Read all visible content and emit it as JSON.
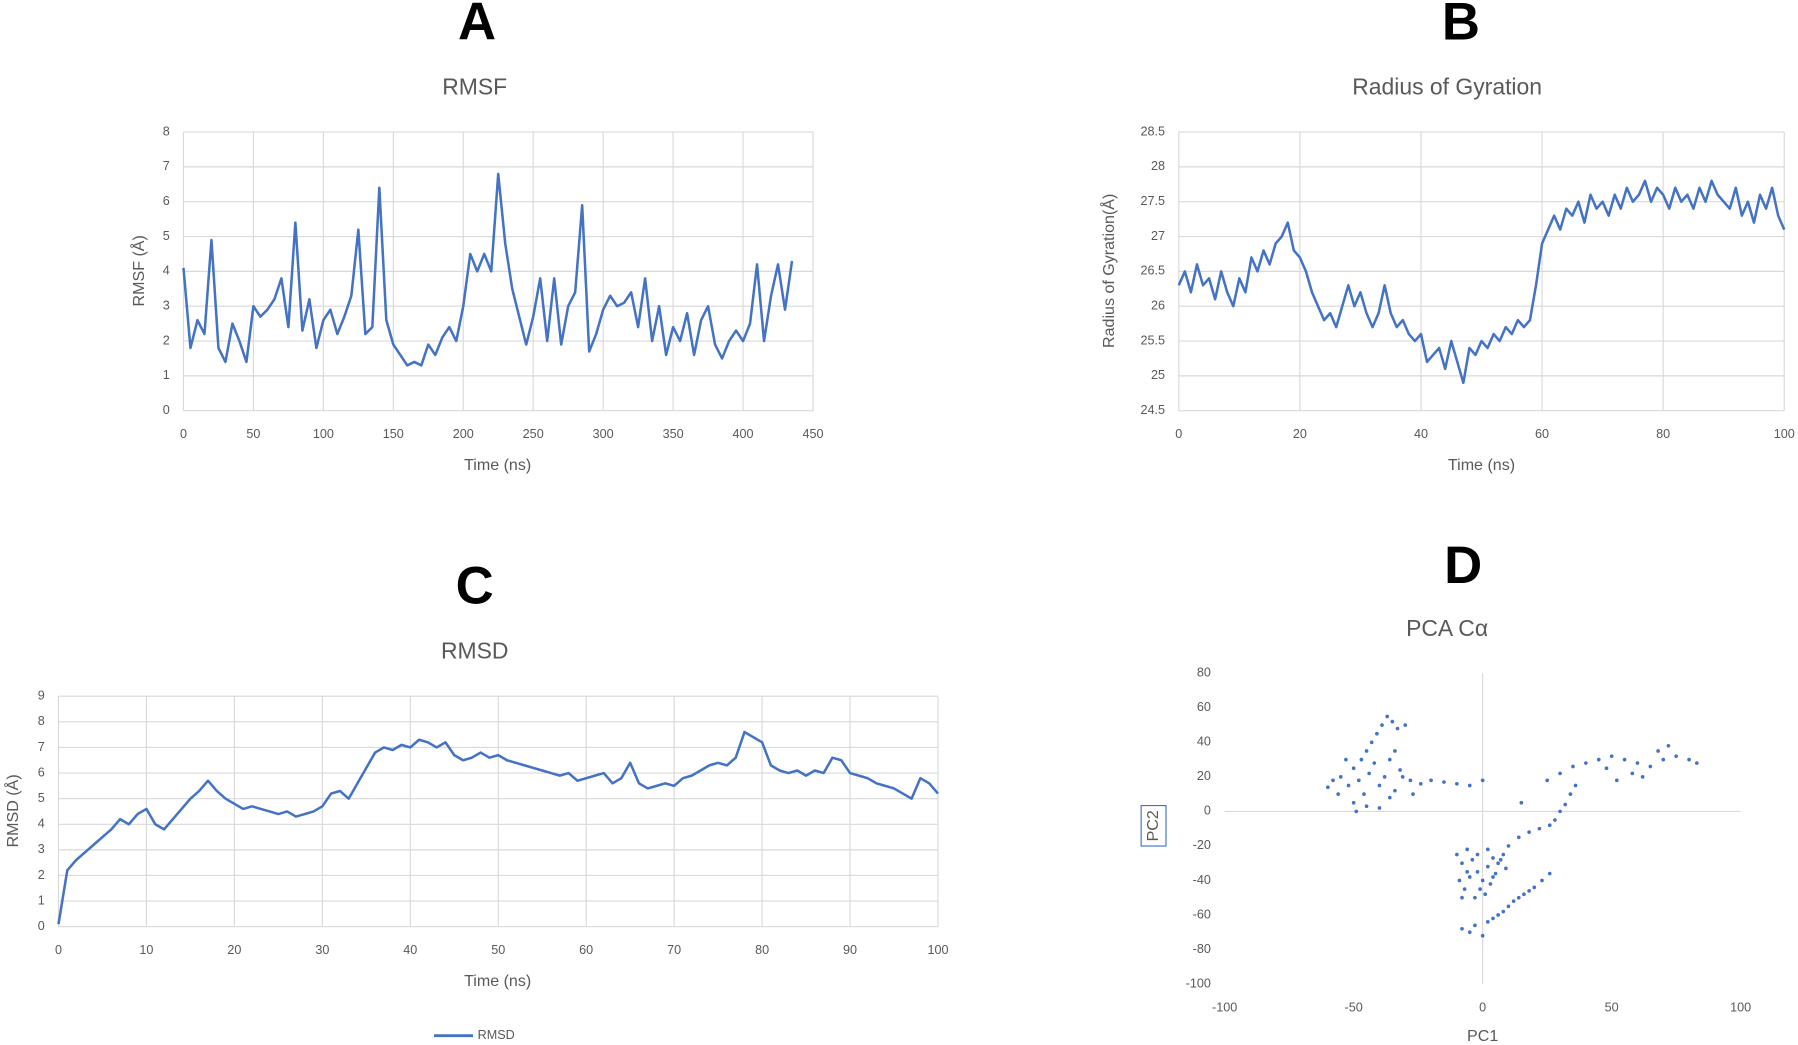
{
  "chart_data": [
    {
      "type": "line",
      "panel": "A",
      "title": "RMSF",
      "xlabel": "Time (ns)",
      "ylabel": "RMSF (Å)",
      "xlim": [
        0,
        450
      ],
      "xticks": [
        0,
        50,
        100,
        150,
        200,
        250,
        300,
        350,
        400,
        450
      ],
      "ylim": [
        0,
        8
      ],
      "yticks": [
        0,
        1,
        2,
        3,
        4,
        5,
        6,
        7,
        8
      ],
      "grid": true,
      "x": [
        0,
        5,
        10,
        15,
        20,
        25,
        30,
        35,
        40,
        45,
        50,
        55,
        60,
        65,
        70,
        75,
        80,
        85,
        90,
        95,
        100,
        105,
        110,
        115,
        120,
        125,
        130,
        135,
        140,
        145,
        150,
        155,
        160,
        165,
        170,
        175,
        180,
        185,
        190,
        195,
        200,
        205,
        210,
        215,
        220,
        225,
        230,
        235,
        240,
        245,
        250,
        255,
        260,
        265,
        270,
        275,
        280,
        285,
        290,
        295,
        300,
        305,
        310,
        315,
        320,
        325,
        330,
        335,
        340,
        345,
        350,
        355,
        360,
        365,
        370,
        375,
        380,
        385,
        390,
        395,
        400,
        405,
        410,
        415,
        420,
        425,
        430,
        435
      ],
      "series": [
        {
          "color": "#4472c4",
          "values": [
            4.1,
            1.8,
            2.6,
            2.2,
            4.9,
            1.8,
            1.4,
            2.5,
            2.0,
            1.4,
            3.0,
            2.7,
            2.9,
            3.2,
            3.8,
            2.4,
            5.4,
            2.3,
            3.2,
            1.8,
            2.6,
            2.9,
            2.2,
            2.7,
            3.3,
            5.2,
            2.2,
            2.4,
            6.4,
            2.6,
            1.9,
            1.6,
            1.3,
            1.4,
            1.3,
            1.9,
            1.6,
            2.1,
            2.4,
            2.0,
            3.0,
            4.5,
            4.0,
            4.5,
            4.0,
            6.8,
            4.8,
            3.5,
            2.7,
            1.9,
            2.7,
            3.8,
            2.0,
            3.8,
            1.9,
            3.0,
            3.4,
            5.9,
            1.7,
            2.2,
            2.9,
            3.3,
            3.0,
            3.1,
            3.4,
            2.4,
            3.8,
            2.0,
            3.0,
            1.6,
            2.4,
            2.0,
            2.8,
            1.6,
            2.6,
            3.0,
            1.9,
            1.5,
            2.0,
            2.3,
            2.0,
            2.5,
            4.2,
            2.0,
            3.3,
            4.2,
            2.9,
            4.3
          ]
        }
      ]
    },
    {
      "type": "line",
      "panel": "B",
      "title": "Radius of Gyration",
      "xlabel": "Time (ns)",
      "ylabel": "Radius of Gyration(Å)",
      "xlim": [
        0,
        100
      ],
      "xticks": [
        0,
        20,
        40,
        60,
        80,
        100
      ],
      "ylim": [
        24.5,
        28.5
      ],
      "yticks": [
        24.5,
        25,
        25.5,
        26,
        26.5,
        27,
        27.5,
        28,
        28.5
      ],
      "grid": true,
      "x": [
        0,
        1,
        2,
        3,
        4,
        5,
        6,
        7,
        8,
        9,
        10,
        11,
        12,
        13,
        14,
        15,
        16,
        17,
        18,
        19,
        20,
        21,
        22,
        23,
        24,
        25,
        26,
        27,
        28,
        29,
        30,
        31,
        32,
        33,
        34,
        35,
        36,
        37,
        38,
        39,
        40,
        41,
        42,
        43,
        44,
        45,
        46,
        47,
        48,
        49,
        50,
        51,
        52,
        53,
        54,
        55,
        56,
        57,
        58,
        59,
        60,
        61,
        62,
        63,
        64,
        65,
        66,
        67,
        68,
        69,
        70,
        71,
        72,
        73,
        74,
        75,
        76,
        77,
        78,
        79,
        80,
        81,
        82,
        83,
        84,
        85,
        86,
        87,
        88,
        89,
        90,
        91,
        92,
        93,
        94,
        95,
        96,
        97,
        98,
        99,
        100
      ],
      "series": [
        {
          "color": "#4472c4",
          "values": [
            26.3,
            26.5,
            26.2,
            26.6,
            26.3,
            26.4,
            26.1,
            26.5,
            26.2,
            26.0,
            26.4,
            26.2,
            26.7,
            26.5,
            26.8,
            26.6,
            26.9,
            27.0,
            27.2,
            26.8,
            26.7,
            26.5,
            26.2,
            26.0,
            25.8,
            25.9,
            25.7,
            26.0,
            26.3,
            26.0,
            26.2,
            25.9,
            25.7,
            25.9,
            26.3,
            25.9,
            25.7,
            25.8,
            25.6,
            25.5,
            25.6,
            25.2,
            25.3,
            25.4,
            25.1,
            25.5,
            25.2,
            24.9,
            25.4,
            25.3,
            25.5,
            25.4,
            25.6,
            25.5,
            25.7,
            25.6,
            25.8,
            25.7,
            25.8,
            26.3,
            26.9,
            27.1,
            27.3,
            27.1,
            27.4,
            27.3,
            27.5,
            27.2,
            27.6,
            27.4,
            27.5,
            27.3,
            27.6,
            27.4,
            27.7,
            27.5,
            27.6,
            27.8,
            27.5,
            27.7,
            27.6,
            27.4,
            27.7,
            27.5,
            27.6,
            27.4,
            27.7,
            27.5,
            27.8,
            27.6,
            27.5,
            27.4,
            27.7,
            27.3,
            27.5,
            27.2,
            27.6,
            27.4,
            27.7,
            27.3,
            27.1
          ]
        }
      ]
    },
    {
      "type": "line",
      "panel": "C",
      "title": "RMSD",
      "xlabel": "Time (ns)",
      "ylabel": "RMSD (Å)",
      "xlim": [
        0,
        100
      ],
      "xticks": [
        0,
        10,
        20,
        30,
        40,
        50,
        60,
        70,
        80,
        90,
        100
      ],
      "ylim": [
        0,
        9
      ],
      "yticks": [
        0,
        1,
        2,
        3,
        4,
        5,
        6,
        7,
        8,
        9
      ],
      "grid": true,
      "legend": "bottom",
      "x": [
        0,
        1,
        2,
        3,
        4,
        5,
        6,
        7,
        8,
        9,
        10,
        11,
        12,
        13,
        14,
        15,
        16,
        17,
        18,
        19,
        20,
        21,
        22,
        23,
        24,
        25,
        26,
        27,
        28,
        29,
        30,
        31,
        32,
        33,
        34,
        35,
        36,
        37,
        38,
        39,
        40,
        41,
        42,
        43,
        44,
        45,
        46,
        47,
        48,
        49,
        50,
        51,
        52,
        53,
        54,
        55,
        56,
        57,
        58,
        59,
        60,
        61,
        62,
        63,
        64,
        65,
        66,
        67,
        68,
        69,
        70,
        71,
        72,
        73,
        74,
        75,
        76,
        77,
        78,
        79,
        80,
        81,
        82,
        83,
        84,
        85,
        86,
        87,
        88,
        89,
        90,
        91,
        92,
        93,
        94,
        95,
        96,
        97,
        98,
        99,
        100
      ],
      "series": [
        {
          "name": "RMSD",
          "color": "#4472c4",
          "values": [
            0.1,
            2.2,
            2.6,
            2.9,
            3.2,
            3.5,
            3.8,
            4.2,
            4.0,
            4.4,
            4.6,
            4.0,
            3.8,
            4.2,
            4.6,
            5.0,
            5.3,
            5.7,
            5.3,
            5.0,
            4.8,
            4.6,
            4.7,
            4.6,
            4.5,
            4.4,
            4.5,
            4.3,
            4.4,
            4.5,
            4.7,
            5.2,
            5.3,
            5.0,
            5.6,
            6.2,
            6.8,
            7.0,
            6.9,
            7.1,
            7.0,
            7.3,
            7.2,
            7.0,
            7.2,
            6.7,
            6.5,
            6.6,
            6.8,
            6.6,
            6.7,
            6.5,
            6.4,
            6.3,
            6.2,
            6.1,
            6.0,
            5.9,
            6.0,
            5.7,
            5.8,
            5.9,
            6.0,
            5.6,
            5.8,
            6.4,
            5.6,
            5.4,
            5.5,
            5.6,
            5.5,
            5.8,
            5.9,
            6.1,
            6.3,
            6.4,
            6.3,
            6.6,
            7.6,
            7.4,
            7.2,
            6.3,
            6.1,
            6.0,
            6.1,
            5.9,
            6.1,
            6.0,
            6.6,
            6.5,
            6.0,
            5.9,
            5.8,
            5.6,
            5.5,
            5.4,
            5.2,
            5.0,
            5.8,
            5.6,
            5.2
          ]
        }
      ]
    },
    {
      "type": "scatter",
      "panel": "D",
      "title": "PCA Cα",
      "xlabel": "PC1",
      "ylabel": "PC2",
      "xlim": [
        -100,
        100
      ],
      "xticks": [
        -100,
        -50,
        0,
        50,
        100
      ],
      "ylim": [
        -100,
        80
      ],
      "yticks": [
        -100,
        -80,
        -60,
        -40,
        -20,
        0,
        20,
        40,
        60,
        80
      ],
      "grid": false,
      "series": [
        {
          "color": "#4472c4",
          "x": [
            -55,
            -52,
            -50,
            -48,
            -46,
            -44,
            -42,
            -40,
            -38,
            -36,
            -34,
            -32,
            -50,
            -47,
            -45,
            -43,
            -41,
            -39,
            -37,
            -35,
            -33,
            -30,
            -53,
            -56,
            -58,
            -60,
            -49,
            -45,
            -40,
            -36,
            -34,
            -31,
            -28,
            -27,
            -24,
            -20,
            -15,
            -10,
            -5,
            0,
            -10,
            -8,
            -6,
            -4,
            -2,
            0,
            2,
            4,
            6,
            8,
            -9,
            -7,
            -5,
            -3,
            -1,
            1,
            3,
            5,
            7,
            9,
            -6,
            -2,
            2,
            4,
            -8,
            -8,
            -5,
            -3,
            0,
            2,
            4,
            6,
            8,
            10,
            12,
            14,
            16,
            18,
            20,
            23,
            26,
            10,
            14,
            18,
            22,
            26,
            28,
            30,
            32,
            34,
            36,
            25,
            30,
            35,
            40,
            45,
            50,
            55,
            60,
            65,
            70,
            75,
            80,
            83,
            48,
            58,
            68,
            72,
            62,
            52,
            15
          ],
          "values": [
            20,
            15,
            25,
            18,
            10,
            22,
            28,
            15,
            20,
            8,
            12,
            24,
            5,
            30,
            35,
            40,
            45,
            50,
            55,
            52,
            48,
            50,
            30,
            10,
            18,
            14,
            0,
            3,
            2,
            30,
            35,
            20,
            18,
            10,
            16,
            18,
            17,
            16,
            15,
            18,
            -25,
            -30,
            -22,
            -28,
            -35,
            -40,
            -32,
            -38,
            -30,
            -25,
            -40,
            -45,
            -38,
            -50,
            -45,
            -48,
            -42,
            -36,
            -28,
            -33,
            -35,
            -25,
            -22,
            -27,
            -50,
            -68,
            -70,
            -66,
            -72,
            -64,
            -62,
            -60,
            -58,
            -55,
            -52,
            -50,
            -48,
            -46,
            -44,
            -40,
            -36,
            -20,
            -15,
            -12,
            -10,
            -8,
            -5,
            0,
            4,
            10,
            15,
            18,
            22,
            26,
            28,
            30,
            32,
            30,
            28,
            26,
            30,
            32,
            30,
            28,
            25,
            22,
            35,
            38,
            20,
            18,
            5
          ]
        }
      ]
    }
  ]
}
